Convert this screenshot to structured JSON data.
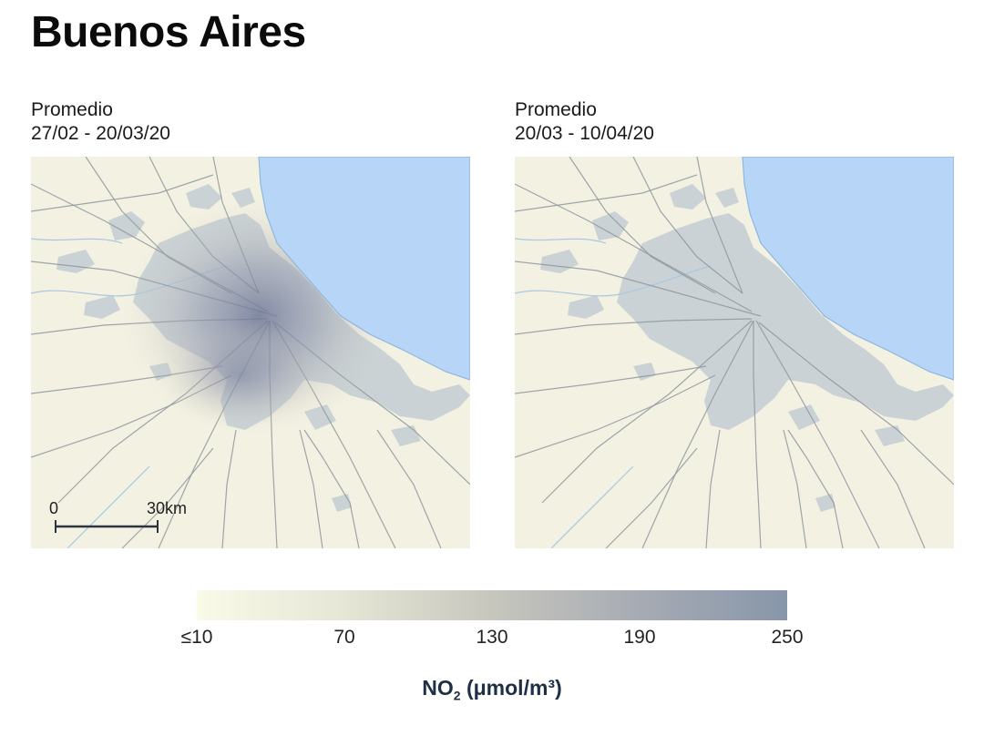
{
  "title": "Buenos Aires",
  "panels": [
    {
      "label": "Promedio",
      "dates": "27/02 - 20/03/20",
      "no2_level": 0.55
    },
    {
      "label": "Promedio",
      "dates": "20/03 - 10/04/20",
      "no2_level": 0.08
    }
  ],
  "scale_bar": {
    "start": "0",
    "end": "30km"
  },
  "legend": {
    "ticks": [
      "≤10",
      "70",
      "130",
      "190",
      "250"
    ],
    "colors": [
      "#fafae9",
      "#e6e6d6",
      "#c6c6bd",
      "#a7abb3",
      "#8896aa"
    ],
    "unit_main": "NO",
    "unit_sub": "2",
    "unit_rest": " (μmol/m³)"
  },
  "map_colors": {
    "land": "#f3f1e2",
    "water": "#b7d6f7",
    "urban": "#c2ccd2",
    "roads": "#8e989e"
  }
}
